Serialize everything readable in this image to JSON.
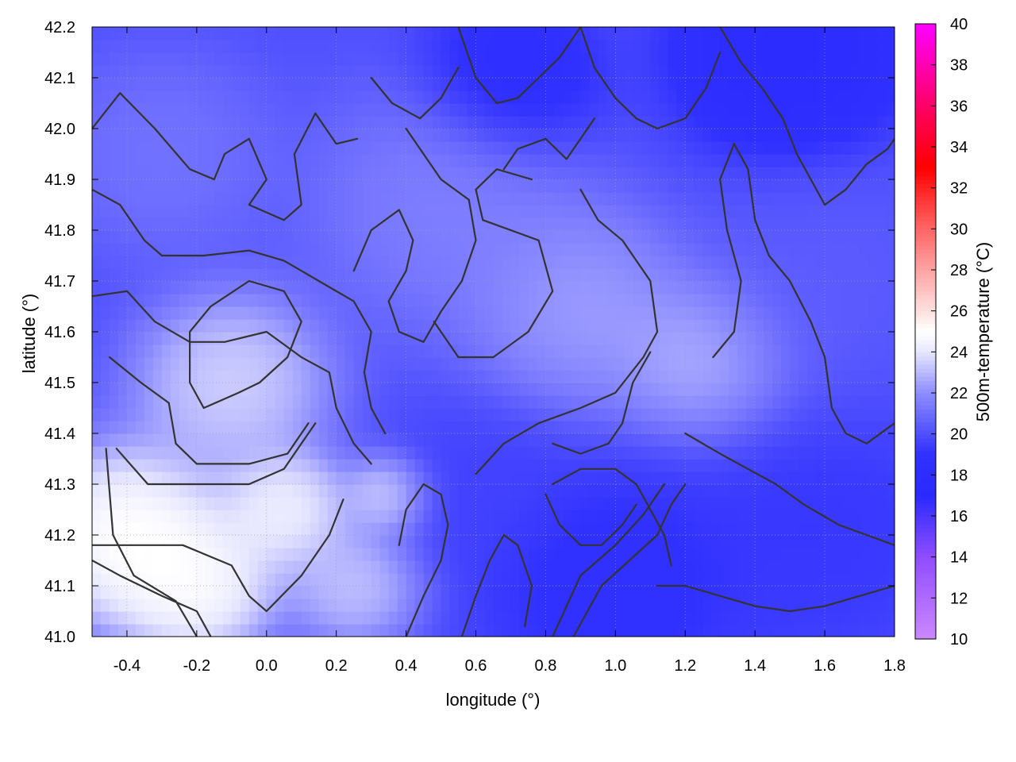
{
  "chart_data": {
    "type": "heatmap",
    "title": "",
    "xlabel": "longitude (°)",
    "ylabel": "latitude (°)",
    "colorbar_label": "500m-temperature (°C)",
    "xlim": [
      -0.5,
      1.8
    ],
    "ylim": [
      41.0,
      42.2
    ],
    "clim": [
      10,
      40
    ],
    "x_ticks": [
      -0.4,
      -0.2,
      0.0,
      0.2,
      0.4,
      0.6,
      0.8,
      1.0,
      1.2,
      1.4,
      1.6,
      1.8
    ],
    "x_tick_labels": [
      "-0.4",
      "-0.2",
      "0.0",
      "0.2",
      "0.4",
      "0.6",
      "0.8",
      "1.0",
      "1.2",
      "1.4",
      "1.6",
      "1.8"
    ],
    "y_ticks": [
      41.0,
      41.1,
      41.2,
      41.3,
      41.4,
      41.5,
      41.6,
      41.7,
      41.8,
      41.9,
      42.0,
      42.1,
      42.2
    ],
    "y_tick_labels": [
      "41.0",
      "41.1",
      "41.2",
      "41.3",
      "41.4",
      "41.5",
      "41.6",
      "41.7",
      "41.8",
      "41.9",
      "42.0",
      "42.1",
      "42.2"
    ],
    "colorbar_ticks": [
      10,
      12,
      14,
      16,
      18,
      20,
      22,
      24,
      26,
      28,
      30,
      32,
      34,
      36,
      38,
      40
    ],
    "colorbar_tick_labels": [
      "10",
      "12",
      "14",
      "16",
      "18",
      "20",
      "22",
      "24",
      "26",
      "28",
      "30",
      "32",
      "34",
      "36",
      "38",
      "40"
    ],
    "colormap": [
      {
        "value": 10,
        "color": "#cc88ff"
      },
      {
        "value": 14,
        "color": "#8f4dff"
      },
      {
        "value": 17,
        "color": "#2a2aff"
      },
      {
        "value": 19,
        "color": "#3030ff"
      },
      {
        "value": 22,
        "color": "#8c8cff"
      },
      {
        "value": 24,
        "color": "#e6e6ff"
      },
      {
        "value": 25,
        "color": "#ffffff"
      },
      {
        "value": 26,
        "color": "#ffe0e0"
      },
      {
        "value": 30,
        "color": "#ff6666"
      },
      {
        "value": 33,
        "color": "#ff0000"
      },
      {
        "value": 36,
        "color": "#ff0066"
      },
      {
        "value": 40,
        "color": "#ff00ff"
      }
    ],
    "temperature_anchors": [
      {
        "lon": -0.4,
        "lat": 41.2,
        "t": 26.5,
        "r": 0.22
      },
      {
        "lon": -0.2,
        "lat": 41.1,
        "t": 26.0,
        "r": 0.18
      },
      {
        "lon": 0.05,
        "lat": 41.25,
        "t": 25.5,
        "r": 0.15
      },
      {
        "lon": -0.1,
        "lat": 41.5,
        "t": 24.5,
        "r": 0.22
      },
      {
        "lon": 0.35,
        "lat": 41.28,
        "t": 24.5,
        "r": 0.1
      },
      {
        "lon": 0.25,
        "lat": 41.1,
        "t": 24.0,
        "r": 0.15
      },
      {
        "lon": 0.9,
        "lat": 41.65,
        "t": 23.0,
        "r": 0.25
      },
      {
        "lon": 1.25,
        "lat": 41.55,
        "t": 23.5,
        "r": 0.2
      },
      {
        "lon": 0.5,
        "lat": 41.85,
        "t": 22.0,
        "r": 0.3
      },
      {
        "lon": -0.3,
        "lat": 41.95,
        "t": 21.5,
        "r": 0.25
      },
      {
        "lon": 0.7,
        "lat": 42.1,
        "t": 18.0,
        "r": 0.2
      },
      {
        "lon": 1.5,
        "lat": 42.15,
        "t": 17.0,
        "r": 0.25
      },
      {
        "lon": 1.0,
        "lat": 41.1,
        "t": 18.5,
        "r": 0.3
      },
      {
        "lon": 1.6,
        "lat": 41.2,
        "t": 19.0,
        "r": 0.3
      },
      {
        "lon": 1.6,
        "lat": 41.7,
        "t": 20.5,
        "r": 0.3
      },
      {
        "lon": 0.6,
        "lat": 41.3,
        "t": 19.5,
        "r": 0.2
      }
    ],
    "contour_lines": [
      [
        [
          -0.46,
          41.37
        ],
        [
          -0.44,
          41.2
        ],
        [
          -0.38,
          41.12
        ],
        [
          -0.26,
          41.07
        ],
        [
          -0.2,
          41.0
        ]
      ],
      [
        [
          -0.5,
          41.15
        ],
        [
          -0.42,
          41.12
        ],
        [
          -0.3,
          41.08
        ],
        [
          -0.2,
          41.05
        ],
        [
          -0.16,
          41.0
        ]
      ],
      [
        [
          -0.5,
          41.18
        ],
        [
          -0.38,
          41.18
        ],
        [
          -0.24,
          41.18
        ],
        [
          -0.1,
          41.14
        ],
        [
          -0.05,
          41.08
        ],
        [
          0.0,
          41.05
        ],
        [
          0.1,
          41.12
        ],
        [
          0.18,
          41.2
        ],
        [
          0.22,
          41.27
        ]
      ],
      [
        [
          -0.43,
          41.37
        ],
        [
          -0.34,
          41.3
        ],
        [
          -0.2,
          41.3
        ],
        [
          -0.05,
          41.3
        ],
        [
          0.05,
          41.33
        ],
        [
          0.1,
          41.38
        ],
        [
          0.14,
          41.42
        ]
      ],
      [
        [
          -0.45,
          41.55
        ],
        [
          -0.36,
          41.5
        ],
        [
          -0.28,
          41.46
        ],
        [
          -0.26,
          41.38
        ],
        [
          -0.2,
          41.34
        ],
        [
          -0.05,
          41.34
        ],
        [
          0.06,
          41.36
        ],
        [
          0.12,
          41.42
        ]
      ],
      [
        [
          -0.5,
          41.67
        ],
        [
          -0.4,
          41.68
        ],
        [
          -0.32,
          41.62
        ],
        [
          -0.22,
          41.58
        ],
        [
          -0.12,
          41.58
        ],
        [
          0.0,
          41.6
        ],
        [
          0.1,
          41.55
        ],
        [
          0.18,
          41.52
        ],
        [
          0.2,
          41.45
        ],
        [
          0.25,
          41.38
        ],
        [
          0.3,
          41.34
        ]
      ],
      [
        [
          -0.22,
          41.6
        ],
        [
          -0.16,
          41.65
        ],
        [
          -0.05,
          41.7
        ],
        [
          0.05,
          41.68
        ],
        [
          0.1,
          41.62
        ],
        [
          0.06,
          41.55
        ],
        [
          -0.02,
          41.5
        ],
        [
          -0.08,
          41.48
        ],
        [
          -0.18,
          41.45
        ],
        [
          -0.22,
          41.5
        ],
        [
          -0.22,
          41.6
        ]
      ],
      [
        [
          -0.5,
          42.0
        ],
        [
          -0.42,
          42.07
        ],
        [
          -0.32,
          42.0
        ],
        [
          -0.22,
          41.92
        ],
        [
          -0.15,
          41.9
        ],
        [
          -0.12,
          41.95
        ],
        [
          -0.05,
          41.98
        ],
        [
          0.0,
          41.9
        ],
        [
          -0.05,
          41.85
        ],
        [
          0.05,
          41.82
        ],
        [
          0.1,
          41.85
        ],
        [
          0.08,
          41.95
        ],
        [
          0.14,
          42.03
        ],
        [
          0.2,
          41.97
        ],
        [
          0.26,
          41.98
        ]
      ],
      [
        [
          -0.5,
          41.88
        ],
        [
          -0.42,
          41.85
        ],
        [
          -0.35,
          41.78
        ],
        [
          -0.3,
          41.75
        ],
        [
          -0.18,
          41.75
        ],
        [
          -0.05,
          41.76
        ],
        [
          0.05,
          41.74
        ],
        [
          0.15,
          41.7
        ],
        [
          0.25,
          41.66
        ],
        [
          0.3,
          41.6
        ],
        [
          0.28,
          41.52
        ],
        [
          0.3,
          41.45
        ],
        [
          0.34,
          41.4
        ]
      ],
      [
        [
          0.25,
          41.72
        ],
        [
          0.3,
          41.8
        ],
        [
          0.38,
          41.84
        ],
        [
          0.42,
          41.78
        ],
        [
          0.4,
          41.72
        ],
        [
          0.35,
          41.66
        ],
        [
          0.38,
          41.6
        ],
        [
          0.45,
          41.58
        ],
        [
          0.5,
          41.64
        ],
        [
          0.56,
          41.7
        ],
        [
          0.6,
          41.78
        ],
        [
          0.58,
          41.86
        ],
        [
          0.5,
          41.9
        ],
        [
          0.45,
          41.95
        ],
        [
          0.4,
          42.0
        ]
      ],
      [
        [
          0.48,
          41.62
        ],
        [
          0.55,
          41.55
        ],
        [
          0.65,
          41.55
        ],
        [
          0.75,
          41.6
        ],
        [
          0.82,
          41.68
        ],
        [
          0.78,
          41.78
        ],
        [
          0.7,
          41.8
        ],
        [
          0.62,
          41.82
        ],
        [
          0.6,
          41.88
        ],
        [
          0.66,
          41.92
        ],
        [
          0.76,
          41.9
        ]
      ],
      [
        [
          0.6,
          41.32
        ],
        [
          0.68,
          41.38
        ],
        [
          0.78,
          41.42
        ],
        [
          0.9,
          41.45
        ],
        [
          1.0,
          41.48
        ],
        [
          1.08,
          41.55
        ],
        [
          1.12,
          41.6
        ],
        [
          1.1,
          41.7
        ],
        [
          1.02,
          41.78
        ],
        [
          0.95,
          41.82
        ],
        [
          0.9,
          41.88
        ]
      ],
      [
        [
          0.82,
          41.38
        ],
        [
          0.9,
          41.36
        ],
        [
          0.98,
          41.38
        ],
        [
          1.02,
          41.42
        ],
        [
          1.05,
          41.5
        ],
        [
          1.1,
          41.56
        ]
      ],
      [
        [
          0.82,
          41.3
        ],
        [
          0.9,
          41.33
        ],
        [
          1.0,
          41.33
        ],
        [
          1.06,
          41.3
        ],
        [
          1.1,
          41.25
        ],
        [
          1.14,
          41.2
        ],
        [
          1.16,
          41.14
        ]
      ],
      [
        [
          0.8,
          41.28
        ],
        [
          0.84,
          41.22
        ],
        [
          0.9,
          41.18
        ],
        [
          0.96,
          41.18
        ],
        [
          1.02,
          41.22
        ],
        [
          1.06,
          41.26
        ]
      ],
      [
        [
          0.88,
          41.0
        ],
        [
          0.92,
          41.05
        ],
        [
          0.96,
          41.1
        ],
        [
          1.04,
          41.15
        ],
        [
          1.12,
          41.2
        ],
        [
          1.16,
          41.26
        ],
        [
          1.2,
          41.3
        ]
      ],
      [
        [
          0.82,
          41.0
        ],
        [
          0.86,
          41.06
        ],
        [
          0.9,
          41.12
        ],
        [
          1.0,
          41.18
        ],
        [
          1.08,
          41.24
        ],
        [
          1.14,
          41.3
        ]
      ],
      [
        [
          0.4,
          41.0
        ],
        [
          0.45,
          41.08
        ],
        [
          0.5,
          41.15
        ],
        [
          0.52,
          41.22
        ],
        [
          0.5,
          41.28
        ],
        [
          0.45,
          41.3
        ],
        [
          0.4,
          41.25
        ],
        [
          0.38,
          41.18
        ]
      ],
      [
        [
          0.56,
          41.0
        ],
        [
          0.6,
          41.08
        ],
        [
          0.64,
          41.15
        ],
        [
          0.68,
          41.2
        ],
        [
          0.72,
          41.18
        ],
        [
          0.76,
          41.1
        ],
        [
          0.74,
          41.02
        ]
      ],
      [
        [
          1.28,
          41.55
        ],
        [
          1.34,
          41.6
        ],
        [
          1.36,
          41.7
        ],
        [
          1.32,
          41.8
        ],
        [
          1.3,
          41.9
        ],
        [
          1.34,
          41.97
        ],
        [
          1.38,
          41.92
        ],
        [
          1.4,
          41.82
        ],
        [
          1.44,
          41.75
        ],
        [
          1.5,
          41.7
        ],
        [
          1.56,
          41.62
        ],
        [
          1.6,
          41.55
        ],
        [
          1.62,
          41.45
        ],
        [
          1.66,
          41.4
        ],
        [
          1.72,
          41.38
        ],
        [
          1.8,
          41.42
        ]
      ],
      [
        [
          1.2,
          41.4
        ],
        [
          1.3,
          41.36
        ],
        [
          1.38,
          41.33
        ],
        [
          1.46,
          41.3
        ],
        [
          1.54,
          41.26
        ],
        [
          1.64,
          41.22
        ],
        [
          1.72,
          41.2
        ],
        [
          1.8,
          41.18
        ]
      ],
      [
        [
          1.12,
          41.1
        ],
        [
          1.2,
          41.1
        ],
        [
          1.3,
          41.08
        ],
        [
          1.4,
          41.06
        ],
        [
          1.5,
          41.05
        ],
        [
          1.6,
          41.06
        ],
        [
          1.7,
          41.08
        ],
        [
          1.8,
          41.1
        ]
      ],
      [
        [
          1.3,
          42.2
        ],
        [
          1.36,
          42.13
        ],
        [
          1.42,
          42.08
        ],
        [
          1.48,
          42.02
        ],
        [
          1.52,
          41.95
        ],
        [
          1.56,
          41.9
        ],
        [
          1.6,
          41.85
        ],
        [
          1.66,
          41.88
        ],
        [
          1.72,
          41.93
        ],
        [
          1.78,
          41.96
        ],
        [
          1.8,
          41.98
        ]
      ],
      [
        [
          0.9,
          42.2
        ],
        [
          0.94,
          42.12
        ],
        [
          1.0,
          42.06
        ],
        [
          1.06,
          42.02
        ],
        [
          1.12,
          42.0
        ],
        [
          1.2,
          42.02
        ],
        [
          1.26,
          42.08
        ],
        [
          1.3,
          42.15
        ]
      ],
      [
        [
          0.55,
          42.2
        ],
        [
          0.6,
          42.1
        ],
        [
          0.66,
          42.05
        ],
        [
          0.72,
          42.06
        ],
        [
          0.78,
          42.1
        ],
        [
          0.84,
          42.14
        ],
        [
          0.88,
          42.18
        ],
        [
          0.9,
          42.2
        ]
      ],
      [
        [
          0.3,
          42.1
        ],
        [
          0.36,
          42.05
        ],
        [
          0.44,
          42.02
        ],
        [
          0.5,
          42.06
        ],
        [
          0.55,
          42.12
        ]
      ],
      [
        [
          0.68,
          41.92
        ],
        [
          0.72,
          41.96
        ],
        [
          0.8,
          41.98
        ],
        [
          0.86,
          41.94
        ],
        [
          0.9,
          41.98
        ],
        [
          0.94,
          42.02
        ]
      ]
    ]
  }
}
